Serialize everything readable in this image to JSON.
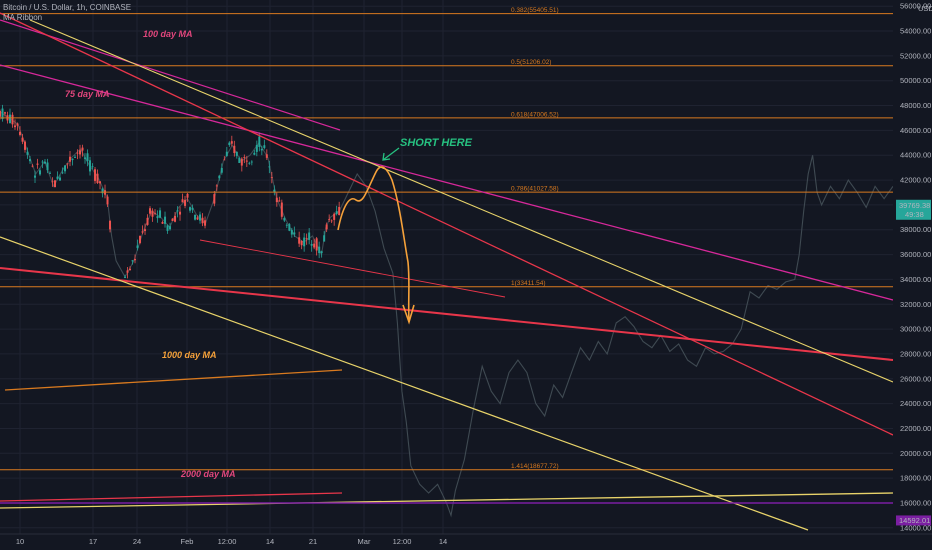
{
  "header": {
    "symbol_line": "Bitcoin / U.S. Dollar, 1h, COINBASE",
    "indicator": "MA Ribbon"
  },
  "currency": "USD",
  "colors": {
    "background": "#131722",
    "grid": "#1f2331",
    "fib": "#d97a1f",
    "ma_magenta": "#d6289a",
    "ma_red": "#e8364a",
    "ma_yellow": "#e8d36a",
    "price": "#3f4a52",
    "bull": "#26a69a",
    "bear": "#ef5350",
    "annotation_green": "#26c281",
    "annotation_orange": "#f5a13a",
    "annotation_pink": "#e0467c",
    "label_last": "#26a69a",
    "label_bottom": "#7b1fa2"
  },
  "chart_data": {
    "type": "line",
    "x_axis": {
      "tick_labels": [
        "10",
        "17",
        "24",
        "Feb",
        "12:00",
        "14",
        "21",
        "Mar",
        "12:00",
        "14"
      ]
    },
    "y_axis": {
      "ylim": [
        13500,
        56500
      ],
      "tick_labels": [
        "14000.00",
        "16000.00",
        "18000.00",
        "20000.00",
        "22000.00",
        "24000.00",
        "26000.00",
        "28000.00",
        "30000.00",
        "32000.00",
        "34000.00",
        "36000.00",
        "38000.00",
        "40000.00",
        "42000.00",
        "44000.00",
        "46000.00",
        "48000.00",
        "50000.00",
        "52000.00",
        "54000.00",
        "56000.00"
      ]
    },
    "fib_levels": [
      {
        "label": "0.382(55405.51)",
        "value": 55405.51
      },
      {
        "label": "0.5(51206.02)",
        "value": 51206.02
      },
      {
        "label": "0.618(47006.52)",
        "value": 47006.52
      },
      {
        "label": "0.786(41027.58)",
        "value": 41027.58
      },
      {
        "label": "1(33411.54)",
        "value": 33411.54
      },
      {
        "label": "1.414(18677.72)",
        "value": 18677.72
      }
    ],
    "price_labels": [
      {
        "text": "39769.38",
        "subtext": "49:38",
        "value": 39769.38
      },
      {
        "text": "14592.01",
        "value": 14592.01
      }
    ],
    "annotations": {
      "short_here": "SHORT HERE",
      "ma100": "100 day MA",
      "ma75": "75 day MA",
      "ma1000": "1000 day MA",
      "ma2000": "2000 day MA"
    },
    "price_series": [
      [
        0.0,
        47500
      ],
      [
        0.02,
        46500
      ],
      [
        0.03,
        44500
      ],
      [
        0.04,
        42500
      ],
      [
        0.05,
        43500
      ],
      [
        0.06,
        41500
      ],
      [
        0.07,
        42800
      ],
      [
        0.08,
        43800
      ],
      [
        0.09,
        44500
      ],
      [
        0.1,
        43200
      ],
      [
        0.11,
        42200
      ],
      [
        0.12,
        40600
      ],
      [
        0.125,
        37500
      ],
      [
        0.13,
        35500
      ],
      [
        0.14,
        34200
      ],
      [
        0.15,
        35500
      ],
      [
        0.16,
        37800
      ],
      [
        0.17,
        39500
      ],
      [
        0.18,
        39000
      ],
      [
        0.19,
        38200
      ],
      [
        0.2,
        39800
      ],
      [
        0.21,
        40500
      ],
      [
        0.22,
        39200
      ],
      [
        0.23,
        38500
      ],
      [
        0.24,
        40500
      ],
      [
        0.25,
        43500
      ],
      [
        0.26,
        44800
      ],
      [
        0.27,
        43500
      ],
      [
        0.28,
        44000
      ],
      [
        0.29,
        45000
      ],
      [
        0.3,
        43800
      ],
      [
        0.31,
        40500
      ],
      [
        0.32,
        38800
      ],
      [
        0.33,
        37500
      ],
      [
        0.34,
        37000
      ],
      [
        0.35,
        37500
      ],
      [
        0.36,
        36000
      ],
      [
        0.365,
        38200
      ],
      [
        0.37,
        39000
      ],
      [
        0.38,
        39500
      ],
      [
        0.39,
        41000
      ],
      [
        0.4,
        42500
      ],
      [
        0.41,
        41500
      ],
      [
        0.42,
        39500
      ],
      [
        0.43,
        36500
      ],
      [
        0.44,
        34500
      ],
      [
        0.445,
        30500
      ],
      [
        0.45,
        25000
      ],
      [
        0.455,
        22500
      ],
      [
        0.46,
        19000
      ],
      [
        0.47,
        17500
      ],
      [
        0.48,
        16800
      ],
      [
        0.49,
        17500
      ],
      [
        0.5,
        16000
      ],
      [
        0.505,
        15000
      ],
      [
        0.51,
        17000
      ],
      [
        0.52,
        19500
      ],
      [
        0.53,
        23500
      ],
      [
        0.54,
        27000
      ],
      [
        0.55,
        25000
      ],
      [
        0.56,
        24000
      ],
      [
        0.57,
        26500
      ],
      [
        0.58,
        27500
      ],
      [
        0.59,
        26500
      ],
      [
        0.6,
        24000
      ],
      [
        0.61,
        23000
      ],
      [
        0.62,
        25500
      ],
      [
        0.63,
        24500
      ],
      [
        0.64,
        26500
      ],
      [
        0.65,
        28500
      ],
      [
        0.66,
        27500
      ],
      [
        0.67,
        29000
      ],
      [
        0.68,
        28000
      ],
      [
        0.69,
        30500
      ],
      [
        0.7,
        31000
      ],
      [
        0.71,
        30200
      ],
      [
        0.72,
        29000
      ],
      [
        0.73,
        28500
      ],
      [
        0.74,
        29500
      ],
      [
        0.75,
        28200
      ],
      [
        0.76,
        28800
      ],
      [
        0.77,
        27500
      ],
      [
        0.78,
        27000
      ],
      [
        0.79,
        28500
      ],
      [
        0.8,
        28000
      ],
      [
        0.81,
        28200
      ],
      [
        0.82,
        28800
      ],
      [
        0.83,
        30000
      ],
      [
        0.84,
        33000
      ],
      [
        0.85,
        32500
      ],
      [
        0.86,
        33500
      ],
      [
        0.87,
        33200
      ],
      [
        0.88,
        33800
      ],
      [
        0.89,
        34000
      ],
      [
        0.895,
        36000
      ],
      [
        0.9,
        39500
      ],
      [
        0.905,
        42500
      ],
      [
        0.91,
        44000
      ],
      [
        0.915,
        41000
      ],
      [
        0.92,
        40000
      ],
      [
        0.93,
        41500
      ],
      [
        0.94,
        40500
      ],
      [
        0.95,
        42000
      ],
      [
        0.96,
        41000
      ],
      [
        0.97,
        39800
      ],
      [
        0.98,
        41500
      ],
      [
        0.99,
        40500
      ],
      [
        1.0,
        41500
      ]
    ],
    "candle_segments": [
      {
        "x_range": [
          0.0,
          0.125
        ]
      },
      {
        "x_range": [
          0.14,
          0.23
        ]
      },
      {
        "x_range": [
          0.24,
          0.33
        ]
      },
      {
        "x_range": [
          0.335,
          0.38
        ]
      }
    ]
  }
}
